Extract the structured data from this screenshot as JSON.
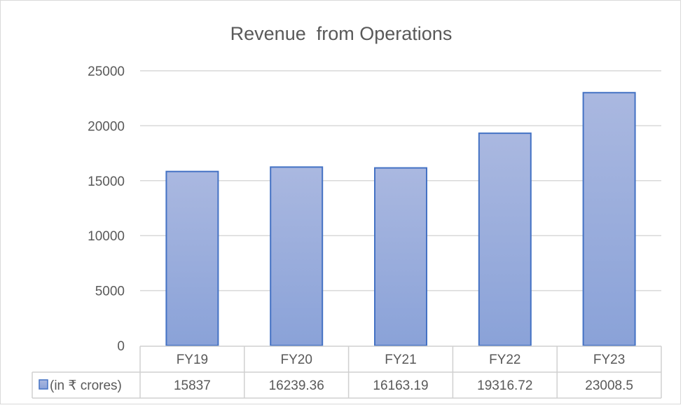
{
  "chart_data": {
    "type": "bar",
    "title": "Revenue  from Operations",
    "categories": [
      "FY19",
      "FY20",
      "FY21",
      "FY22",
      "FY23"
    ],
    "series": [
      {
        "name": "(in ₹ crores)",
        "values": [
          15837,
          16239.36,
          16163.19,
          19316.72,
          23008.5
        ]
      }
    ],
    "value_labels": [
      "15837",
      "16239.36",
      "16163.19",
      "19316.72",
      "23008.5"
    ],
    "ylim": [
      0,
      25000
    ],
    "yticks": [
      "0",
      "5000",
      "10000",
      "15000",
      "20000",
      "25000"
    ],
    "grid": true,
    "legend": "data-table",
    "colors": {
      "bar_top": "#aab8e0",
      "bar_bottom": "#8aa2d8",
      "bar_border": "#4472c4",
      "grid": "#d9d9d9"
    }
  }
}
